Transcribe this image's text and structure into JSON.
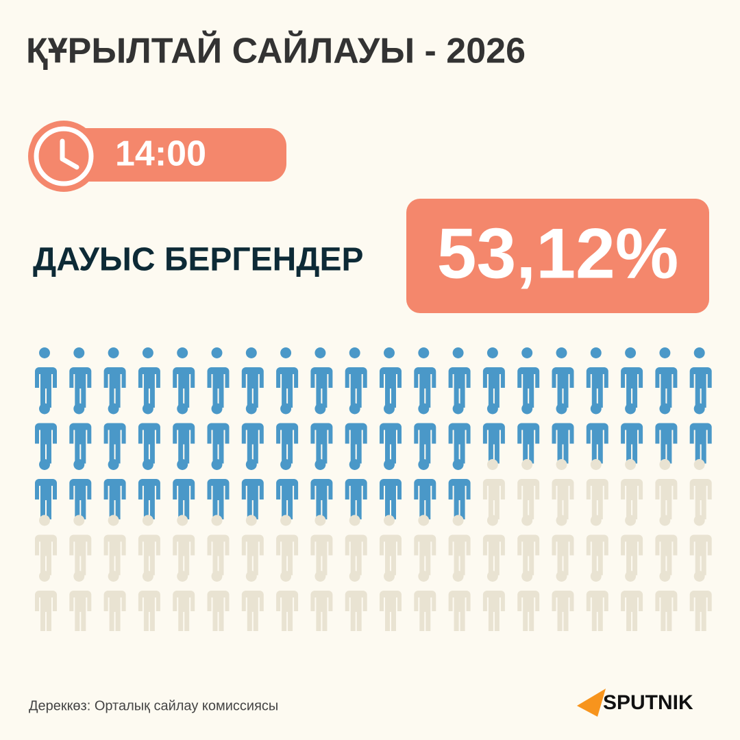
{
  "title": "ҚҰРЫЛТАЙ САЙЛАУЫ - 2026",
  "time": "14:00",
  "turnout": {
    "label": "ДАУЫС БЕРГЕНДЕР",
    "value": 53.12,
    "value_label": "53,12%",
    "filled_color": "#4a98c8",
    "empty_color": "#e9e3d2"
  },
  "source": "Дереккөз: Орталық сайлау комиссиясы",
  "brand": "SPUTNIK"
}
